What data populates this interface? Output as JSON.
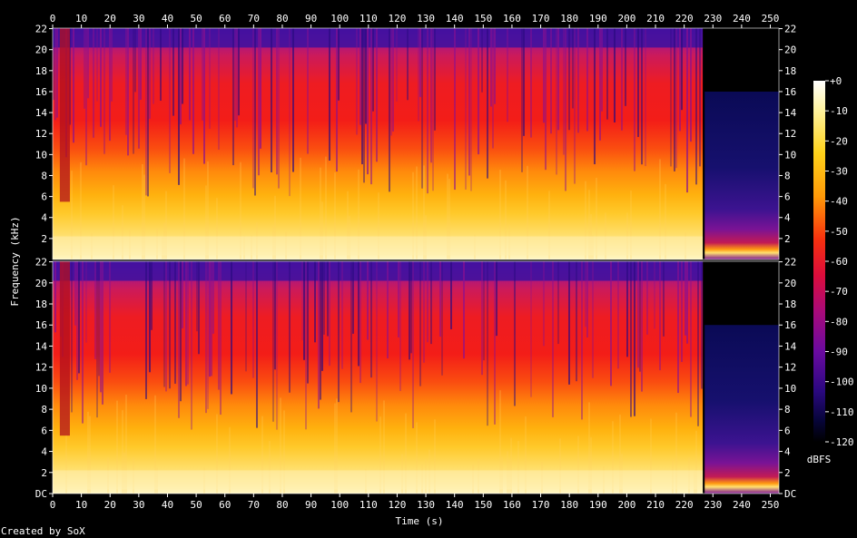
{
  "chart_data": {
    "type": "heatmap",
    "title": "",
    "xlabel": "Time (s)",
    "ylabel": "Frequency (kHz)",
    "x_ticks": [
      0,
      10,
      20,
      30,
      40,
      50,
      60,
      70,
      80,
      90,
      100,
      110,
      120,
      130,
      140,
      150,
      160,
      170,
      180,
      190,
      200,
      210,
      220,
      230,
      240,
      250
    ],
    "xlim": [
      0,
      253
    ],
    "y_ticks_kHz": [
      0,
      2,
      4,
      6,
      8,
      10,
      12,
      14,
      16,
      18,
      20,
      22
    ],
    "y_tick_labels_upper": [
      "2",
      "4",
      "6",
      "8",
      "10",
      "12",
      "14",
      "16",
      "18",
      "20",
      "22"
    ],
    "y_tick_labels_lower": [
      "DC",
      "2",
      "4",
      "6",
      "8",
      "10",
      "12",
      "14",
      "16",
      "18",
      "20",
      "22"
    ],
    "ylim_kHz": [
      0,
      22.05
    ],
    "channels": 2,
    "colorbar": {
      "label": "dBFS",
      "ticks": [
        "+0",
        "-10",
        "-20",
        "-30",
        "-40",
        "-50",
        "-60",
        "-70",
        "-80",
        "-90",
        "-100",
        "-110",
        "-120"
      ],
      "range_dB": [
        -120,
        0
      ]
    },
    "music_end_s": 226.5,
    "tail_cutoff_kHz": 16,
    "intro_silence_s": [
      2.5,
      6.0
    ],
    "credit": "Created by SoX"
  }
}
